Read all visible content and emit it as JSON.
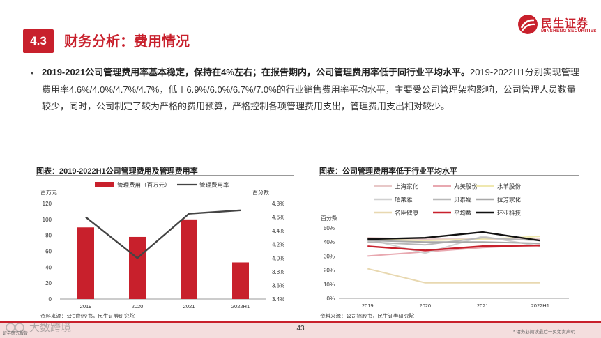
{
  "brand": {
    "name_cn": "民生证券",
    "name_en": "MINSHENG SECURITIES",
    "color": "#c8202c"
  },
  "section": {
    "number": "4.3",
    "title": "财务分析：费用情况"
  },
  "body": {
    "bullet": "•",
    "lead_bold": "2019-2021公司管理费用率基本稳定，保持在4%左右；在报告期内，公司管理费用率低于同行业平均水平。",
    "rest": "2019-2022H1分别实现管理费用率4.6%/4.0%/4.7%/4.7%，低于6.9%/6.0%/6.7%/7.0%的行业销售费用率平均水平，主要受公司管理架构影响，公司管理人员数量较少，同时，公司制定了较为严格的费用预算，严格控制各项管理费用支出，管理费用支出相对较少。"
  },
  "chart_data": [
    {
      "type": "bar",
      "title": "图表：2019-2022H1公司管理费用及管理费用率",
      "categories": [
        "2019",
        "2020",
        "2021",
        "2022H1"
      ],
      "y_left_unit": "百万元",
      "y_right_unit": "百分数",
      "y_left_ticks": [
        "0",
        "20",
        "40",
        "60",
        "80",
        "100",
        "120"
      ],
      "y_right_ticks": [
        "3.4%",
        "3.6%",
        "3.8%",
        "4.0%",
        "4.2%",
        "4.4%",
        "4.6%",
        "4.8%"
      ],
      "ylim_left": [
        0,
        120
      ],
      "ylim_right": [
        3.4,
        4.8
      ],
      "series": [
        {
          "name": "管理费用（百万元）",
          "kind": "bar",
          "axis": "left",
          "color": "#c8202c",
          "values": [
            90,
            78,
            100,
            46
          ]
        },
        {
          "name": "管理费用率",
          "kind": "line",
          "axis": "right",
          "color": "#444444",
          "values": [
            4.6,
            4.0,
            4.65,
            4.7
          ]
        }
      ],
      "legend": "top",
      "source": "资料来源：公司招股书，民生证券研究院"
    },
    {
      "type": "line",
      "title": "图表：公司管理费用率低于行业平均水平",
      "categories": [
        "2019",
        "2020",
        "2021",
        "2022H1"
      ],
      "y_unit": "百分数",
      "y_ticks": [
        "0%",
        "10%",
        "20%",
        "30%",
        "40%",
        "50%"
      ],
      "ylim": [
        0,
        50
      ],
      "series": [
        {
          "name": "上海家化",
          "color": "#e8c8c8",
          "values": [
            43,
            42,
            42,
            42
          ]
        },
        {
          "name": "丸美股份",
          "color": "#e8a8b0",
          "values": [
            30,
            33,
            36,
            38
          ]
        },
        {
          "name": "水羊股份",
          "color": "#efe8b0",
          "values": [
            42,
            41,
            42,
            44
          ]
        },
        {
          "name": "珀莱雅",
          "color": "#d0d0d0",
          "values": [
            42,
            32,
            44,
            37
          ]
        },
        {
          "name": "贝泰妮",
          "color": "#b8b8b8",
          "values": [
            40,
            38,
            43,
            41
          ]
        },
        {
          "name": "拉芳家化",
          "color": "#a8a8a8",
          "values": [
            41,
            40,
            40,
            39
          ]
        },
        {
          "name": "名臣健康",
          "color": "#e8d8b0",
          "values": [
            21,
            11,
            11,
            11
          ]
        },
        {
          "name": "平均数",
          "color": "#c8202c",
          "values": [
            37,
            34,
            37,
            37.5
          ]
        },
        {
          "name": "环亚科技",
          "color": "#111111",
          "values": [
            42,
            43,
            47,
            41
          ]
        }
      ],
      "legend": "top",
      "source": "资料来源：公司招股书，民生证券研究院"
    }
  ],
  "footer": {
    "page": "43",
    "disclaimer": "* 请务必阅读最后一页免责声明",
    "watermark": "大数跨境",
    "watermark_small": "证券研究报告"
  }
}
